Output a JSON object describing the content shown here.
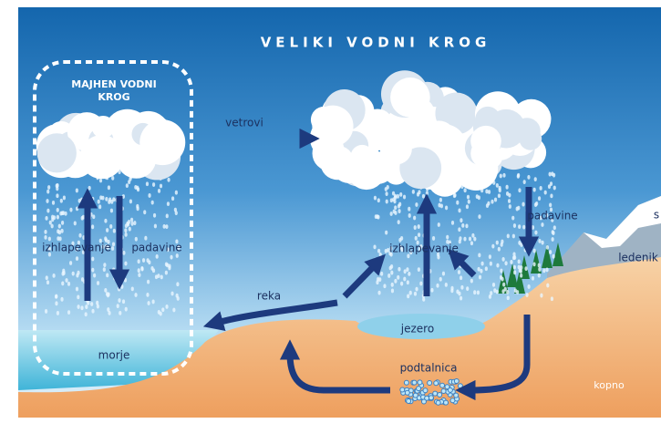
{
  "title": "VELIKI VODNI KROG",
  "small_cycle": {
    "title_lines": [
      "MAJHEN VODNI",
      "KROG"
    ],
    "evaporation": "izhlapevanje",
    "precipitation": "padavine",
    "sea": "morje"
  },
  "large_cycle": {
    "winds": "vetrovi",
    "evaporation": "izhlapevanje",
    "precipitation": "padavine",
    "river": "reka",
    "lake": "jezero",
    "groundwater": "podtalnica",
    "land": "kopno",
    "glacier": "ledenik",
    "snow": "s"
  }
}
